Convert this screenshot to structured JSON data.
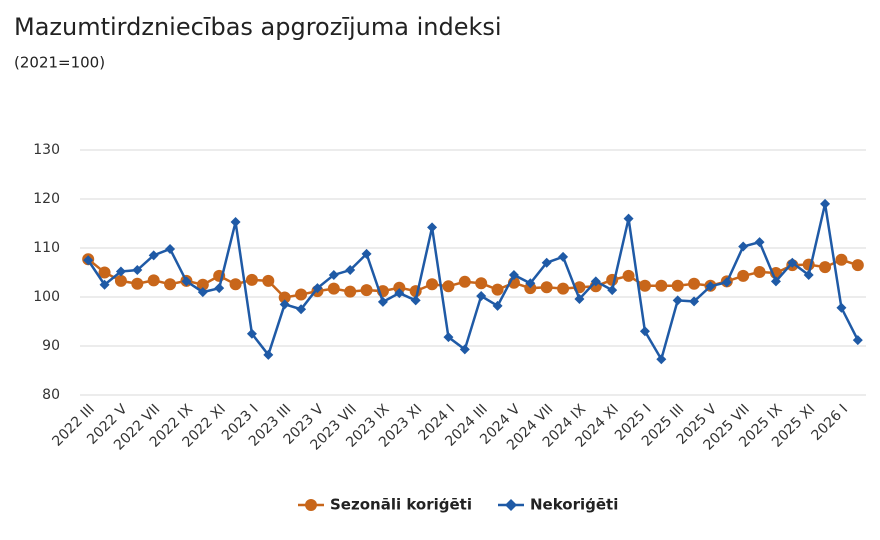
{
  "chart_data": {
    "type": "line",
    "title": "Mazumtirdzniecības apgrozījuma indeksi",
    "subtitle": "(2021=100)",
    "categories": [
      "2022 III",
      null,
      "2022 V",
      null,
      "2022 VII",
      null,
      "2022 IX",
      null,
      "2022 XI",
      null,
      "2023 I",
      null,
      "2023 III",
      null,
      "2023 V",
      null,
      "2023 VII",
      null,
      "2023 IX",
      null,
      "2023 XI",
      null,
      "2024 I",
      null,
      "2024 III",
      null,
      "2024 V",
      null,
      "2024 VII",
      null,
      "2024 IX",
      null,
      "2024 XI",
      null,
      "2025 I",
      null,
      "2025 III",
      null,
      "2025 V",
      null,
      "2025 VII",
      null,
      "2025 IX",
      null,
      "2025 XI",
      null,
      "2026 I",
      null
    ],
    "series": [
      {
        "name": "Sezonāli koriģēti",
        "color": "#c8661a",
        "marker": "circle",
        "values": [
          107.7,
          105,
          103.3,
          102.7,
          103.4,
          102.6,
          103.3,
          102.5,
          104.3,
          102.6,
          103.5,
          103.3,
          99.9,
          100.5,
          101.2,
          101.7,
          101.1,
          101.4,
          101.2,
          101.9,
          101.2,
          102.6,
          102.2,
          103.1,
          102.8,
          101.5,
          102.9,
          101.8,
          102,
          101.7,
          102,
          102.2,
          103.5,
          104.3,
          102.3,
          102.3,
          102.3,
          102.7,
          102.3,
          103.2,
          104.3,
          105.1,
          104.9,
          106.5,
          106.6,
          106.1,
          107.6,
          106.5
        ]
      },
      {
        "name": "Nekoriģēti",
        "color": "#1f5aa6",
        "marker": "diamond",
        "values": [
          107.5,
          102.5,
          105.2,
          105.5,
          108.5,
          109.8,
          103.2,
          101,
          101.8,
          115.3,
          92.5,
          88.2,
          98.5,
          97.5,
          101.8,
          104.5,
          105.5,
          108.8,
          99,
          100.8,
          99.3,
          114.2,
          91.8,
          89.3,
          100.2,
          98.2,
          104.5,
          102.8,
          107,
          108.2,
          99.6,
          103.2,
          101.4,
          116,
          93,
          87.3,
          99.3,
          99.1,
          102.2,
          103,
          110.3,
          111.2,
          103.2,
          107,
          104.5,
          119,
          97.8,
          91.2
        ]
      }
    ],
    "ylim": [
      80,
      130
    ],
    "yticks": [
      80,
      90,
      100,
      110,
      120,
      130
    ],
    "grid": true,
    "legend": "bottom"
  }
}
